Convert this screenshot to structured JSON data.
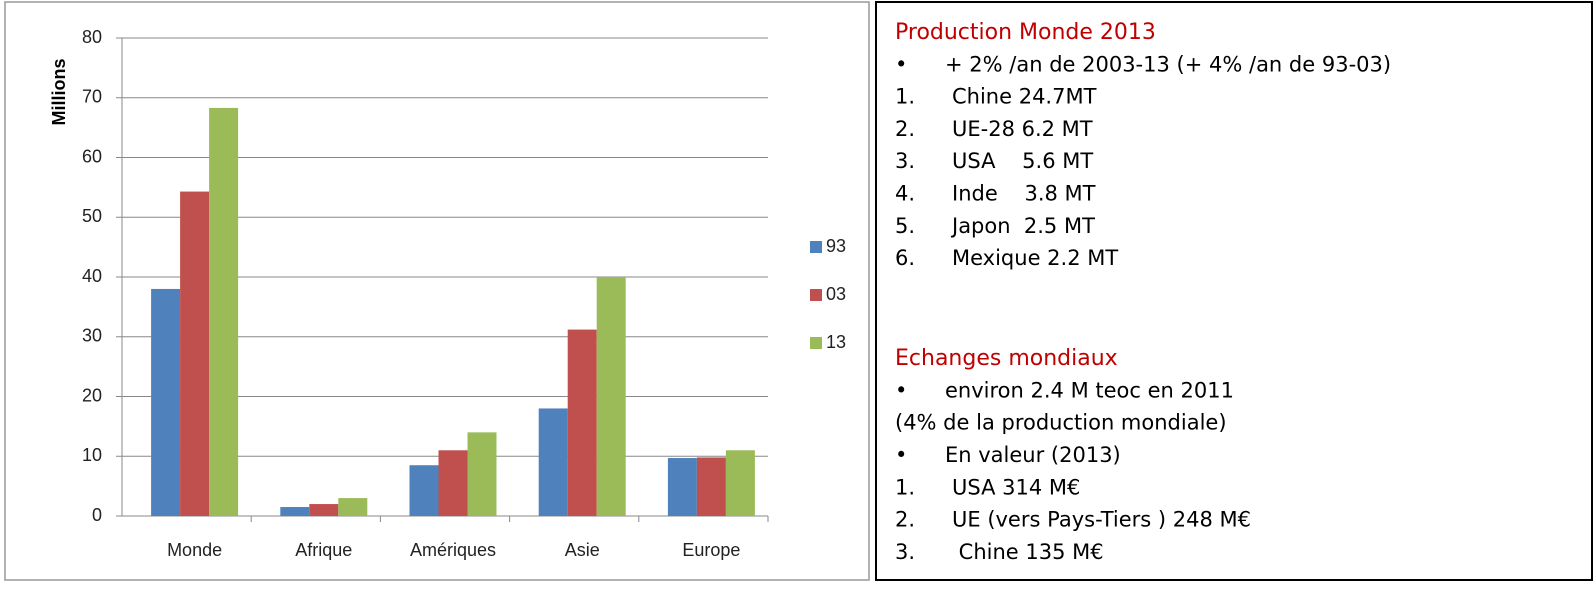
{
  "chart_data": {
    "type": "bar",
    "y_label": "Millions",
    "categories": [
      "Monde",
      "Afrique",
      "Amériques",
      "Asie",
      "Europe"
    ],
    "series": [
      {
        "name": "93",
        "color": "#4f81bd",
        "values": [
          38,
          1.5,
          8.5,
          18,
          9.7
        ]
      },
      {
        "name": "03",
        "color": "#c0504d",
        "values": [
          54.3,
          2,
          11,
          31.2,
          9.8
        ]
      },
      {
        "name": "13",
        "color": "#9bbb59",
        "values": [
          68.3,
          3,
          14,
          40,
          11
        ]
      }
    ],
    "ylim": [
      0,
      80
    ],
    "yticks": [
      0,
      10,
      20,
      30,
      40,
      50,
      60,
      70,
      80
    ],
    "grid": true,
    "legend": "right"
  },
  "panel": {
    "sections": [
      {
        "title": "Production Monde 2013",
        "items": [
          {
            "marker": "•",
            "text": "+ 2% /an de 2003-13 (+ 4% /an de 93-03)"
          },
          {
            "marker": "1.",
            "text": "Chine 24.7MT"
          },
          {
            "marker": "2.",
            "text": "UE-28 6.2 MT"
          },
          {
            "marker": "3.",
            "text": "USA    5.6 MT"
          },
          {
            "marker": "4.",
            "text": "Inde    3.8 MT"
          },
          {
            "marker": "5.",
            "text": "Japon  2.5 MT"
          },
          {
            "marker": "6.",
            "text": "Mexique 2.2 MT"
          }
        ]
      },
      {
        "title": "Echanges mondiaux",
        "items": [
          {
            "marker": "•",
            "text": "environ 2.4 M teoc en 2011"
          },
          {
            "text": "(4% de la production mondiale)"
          },
          {
            "marker": "•",
            "text": "En valeur (2013)"
          },
          {
            "marker": "1.",
            "text": "USA 314 M€"
          },
          {
            "marker": "2.",
            "text": "UE (vers Pays-Tiers ) 248 M€"
          },
          {
            "marker": "3.",
            "text": " Chine 135 M€"
          }
        ]
      }
    ]
  }
}
